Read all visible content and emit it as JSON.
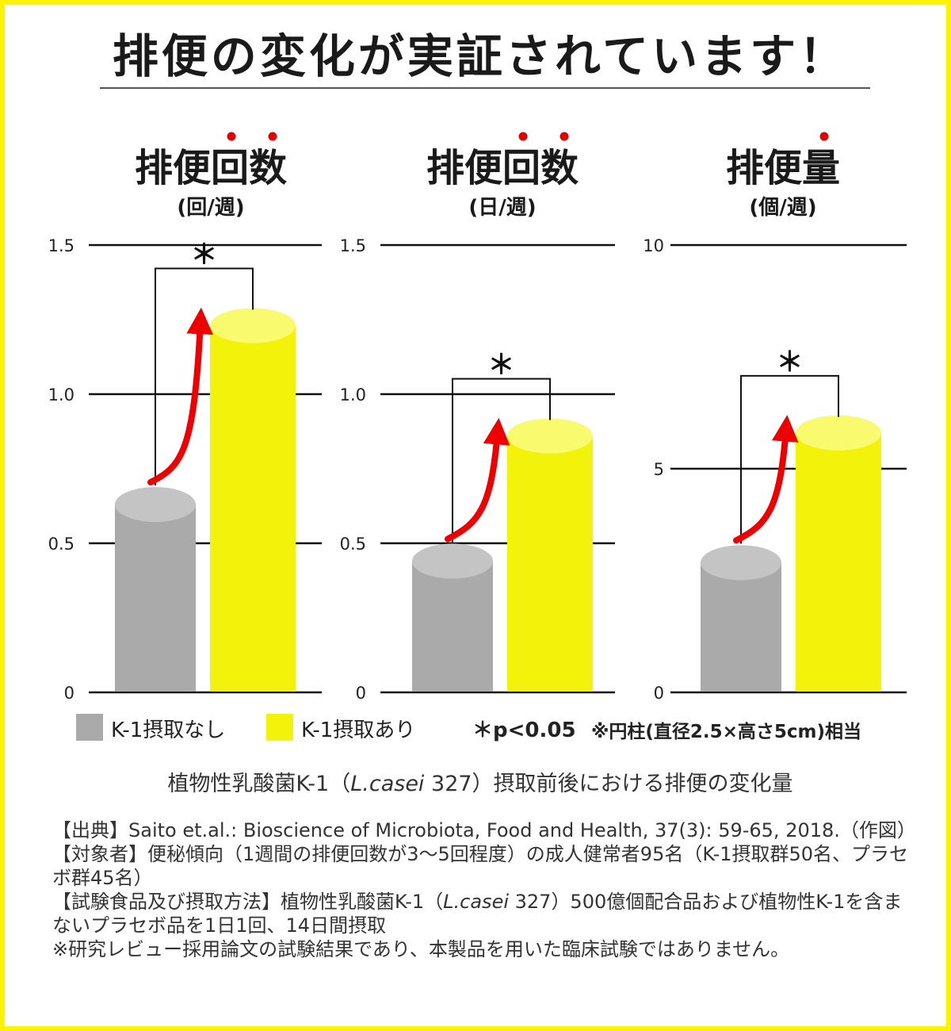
{
  "headline": "排便の変化が実証されています！",
  "colors": {
    "control": "#aaaaaa",
    "control_top": "#c4c4c4",
    "treated": "#f2f20a",
    "treated_top": "#fafa6e",
    "arrow": "#ee0000",
    "border": "#fff200"
  },
  "chart_data": [
    {
      "type": "bar",
      "title": "排便回数",
      "title_emphasis": [
        2,
        3
      ],
      "unit": "(回/週)",
      "yticks": [
        "0",
        "0.5",
        "1.0",
        "1.5"
      ],
      "ylim": [
        0,
        1.5
      ],
      "categories": [
        "K-1摂取なし",
        "K-1摂取あり"
      ],
      "values": [
        0.63,
        1.23
      ],
      "significance": "＊"
    },
    {
      "type": "bar",
      "title": "排便回数",
      "title_emphasis": [
        2,
        3
      ],
      "unit": "(日/週)",
      "yticks": [
        "0",
        "0.5",
        "1.0",
        "1.5"
      ],
      "ylim": [
        0,
        1.5
      ],
      "categories": [
        "K-1摂取なし",
        "K-1摂取あり"
      ],
      "values": [
        0.44,
        0.86
      ],
      "significance": "＊"
    },
    {
      "type": "bar",
      "title": "排便量",
      "title_emphasis": [
        2
      ],
      "unit": "(個/週)",
      "yticks": [
        "0",
        "5",
        "10"
      ],
      "ylim": [
        0,
        10
      ],
      "categories": [
        "K-1摂取なし",
        "K-1摂取あり"
      ],
      "values": [
        2.9,
        5.8
      ],
      "significance": "＊"
    }
  ],
  "legend": {
    "control_label": "K-1摂取なし",
    "treated_label": "K-1摂取あり",
    "pvalue": "＊p<0.05",
    "cylinder_note": "※円柱(直径2.5×高さ5cm)相当"
  },
  "caption": {
    "before": "植物性乳酸菌K-1（",
    "italic": "L.casei",
    "after": " 327）摂取前後における排便の変化量"
  },
  "notes": {
    "source": "【出典】Saito et.al.: Bioscience of Microbiota, Food and Health, 37(3): 59-65, 2018.（作図）",
    "subjects": "【対象者】便秘傾向（1週間の排便回数が3～5回程度）の成人健常者95名（K-1摂取群50名、プラセボ群45名）",
    "method_before": "【試験食品及び摂取方法】植物性乳酸菌K-1（",
    "method_italic": "L.casei",
    "method_after": " 327）500億個配合品および植物性K-1を含まないプラセボ品を1日1回、14日間摂取",
    "disclaimer": "※研究レビュー採用論文の試験結果であり、本製品を用いた臨床試験ではありません。"
  }
}
